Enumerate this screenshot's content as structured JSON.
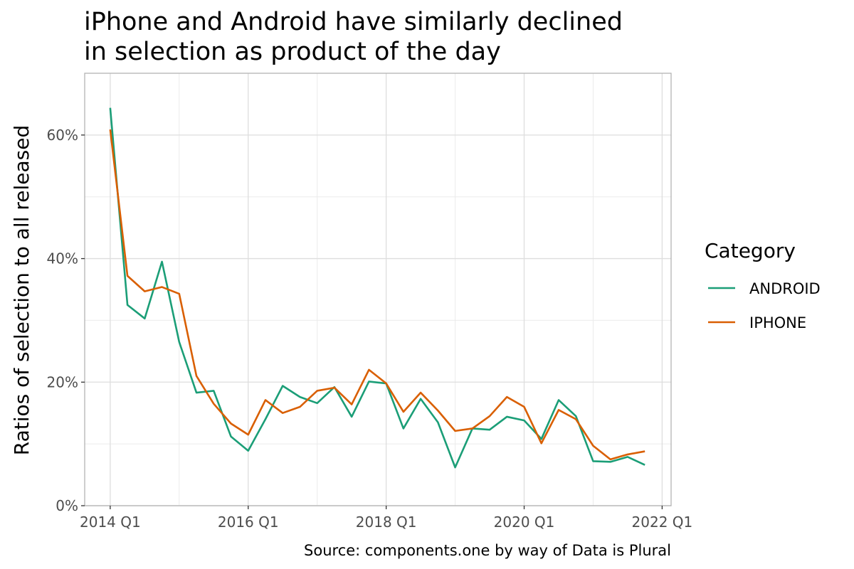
{
  "chart_data": {
    "type": "line",
    "title": "iPhone and Android have similarly declined in selection as product of the day",
    "title_lines": [
      "iPhone and Android have similarly declined",
      "in selection as product of the day"
    ],
    "xlabel": "",
    "ylabel": "Ratios of selection to all released",
    "caption": "Source: components.one by way of Data is Plural",
    "x_tick_labels": [
      "2014 Q1",
      "2016 Q1",
      "2018 Q1",
      "2020 Q1",
      "2022 Q1"
    ],
    "x_ticks": [
      2014,
      2016,
      2018,
      2020,
      2022
    ],
    "xlim": [
      2013.63,
      2022.13
    ],
    "y_tick_labels": [
      "0%",
      "20%",
      "40%",
      "60%"
    ],
    "y_ticks": [
      0,
      0.2,
      0.4,
      0.6
    ],
    "ylim": [
      0,
      0.7
    ],
    "grid": true,
    "legend": {
      "title": "Category",
      "placement": "right"
    },
    "x": [
      "2014 Q1",
      "2014 Q2",
      "2014 Q3",
      "2014 Q4",
      "2015 Q1",
      "2015 Q2",
      "2015 Q3",
      "2015 Q4",
      "2016 Q1",
      "2016 Q2",
      "2016 Q3",
      "2016 Q4",
      "2017 Q1",
      "2017 Q2",
      "2017 Q3",
      "2017 Q4",
      "2018 Q1",
      "2018 Q2",
      "2018 Q3",
      "2018 Q4",
      "2019 Q1",
      "2019 Q2",
      "2019 Q3",
      "2019 Q4",
      "2020 Q1",
      "2020 Q2",
      "2020 Q3",
      "2020 Q4",
      "2021 Q1",
      "2021 Q2",
      "2021 Q3",
      "2021 Q4"
    ],
    "series": [
      {
        "name": "ANDROID",
        "color": "#1b9e77",
        "values": [
          0.644,
          0.325,
          0.303,
          0.395,
          0.265,
          0.183,
          0.186,
          0.112,
          0.089,
          0.14,
          0.194,
          0.176,
          0.166,
          0.192,
          0.144,
          0.201,
          0.198,
          0.125,
          0.173,
          0.135,
          0.062,
          0.125,
          0.123,
          0.144,
          0.138,
          0.108,
          0.171,
          0.145,
          0.072,
          0.071,
          0.079,
          0.066
        ]
      },
      {
        "name": "IPHONE",
        "color": "#d95f02",
        "values": [
          0.609,
          0.372,
          0.347,
          0.354,
          0.343,
          0.21,
          0.165,
          0.133,
          0.115,
          0.171,
          0.15,
          0.16,
          0.186,
          0.191,
          0.164,
          0.22,
          0.198,
          0.152,
          0.183,
          0.154,
          0.121,
          0.125,
          0.145,
          0.176,
          0.16,
          0.101,
          0.155,
          0.14,
          0.097,
          0.075,
          0.083,
          0.088
        ]
      }
    ]
  }
}
